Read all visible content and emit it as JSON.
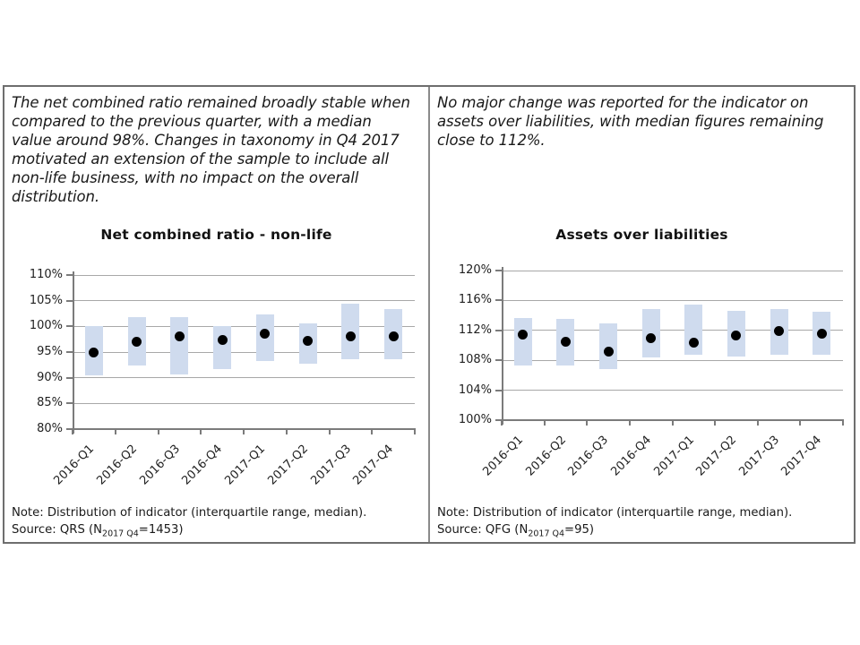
{
  "page": {
    "background": "#ffffff",
    "border_color": "#6e6e6e"
  },
  "panels": [
    {
      "commentary": "The net combined ratio remained broadly stable when\ncompared to the previous quarter, with a median\nvalue around 98%. Changes in taxonomy in Q4 2017\nmotivated an extension of the sample to include all\nnon-life business, with no impact on the overall\ndistribution.",
      "note": "Note: Distribution of indicator (interquartile range, median).",
      "source_prefix": "Source: QRS (N",
      "source_sub": "2017 Q4",
      "source_suffix": "=1453)"
    },
    {
      "commentary": "No major change was reported for the indicator on\nassets over liabilities, with median figures remaining\nclose to 112%.",
      "note": "Note: Distribution of indicator (interquartile range, median).",
      "source_prefix": "Source: QFG (N",
      "source_sub": "2017 Q4",
      "source_suffix": "=95)"
    }
  ],
  "chart_data": [
    {
      "type": "boxplot",
      "title": "Net combined ratio - non-life",
      "categories": [
        "2016-Q1",
        "2016-Q2",
        "2016-Q3",
        "2016-Q4",
        "2017-Q1",
        "2017-Q2",
        "2017-Q3",
        "2017-Q4"
      ],
      "series": [
        {
          "name": "interquartile range",
          "values": [
            [
              90.5,
              100.0
            ],
            [
              92.3,
              101.8
            ],
            [
              90.6,
              101.8
            ],
            [
              91.7,
              100.1
            ],
            [
              93.2,
              102.3
            ],
            [
              92.8,
              100.6
            ],
            [
              93.6,
              104.4
            ],
            [
              93.6,
              103.3
            ]
          ]
        },
        {
          "name": "median",
          "values": [
            95.0,
            97.0,
            98.0,
            97.3,
            98.6,
            97.2,
            98.0,
            98.0
          ]
        }
      ],
      "ylim": [
        80,
        110
      ],
      "ytick_step": 5,
      "yticks": [
        {
          "v": 110,
          "label": "110%"
        },
        {
          "v": 105,
          "label": "105%"
        },
        {
          "v": 100,
          "label": "100%"
        },
        {
          "v": 95,
          "label": "95%"
        },
        {
          "v": 90,
          "label": "90%"
        },
        {
          "v": 85,
          "label": "85%"
        },
        {
          "v": 80,
          "label": "80%"
        }
      ],
      "x_tick_rotation": -45,
      "grid": true,
      "legend": "none",
      "bar_color": "#cfdbee",
      "median_color": "#000000"
    },
    {
      "type": "boxplot",
      "title": "Assets over liabilities",
      "categories": [
        "2016-Q1",
        "2016-Q2",
        "2016-Q3",
        "2016-Q4",
        "2017-Q1",
        "2017-Q2",
        "2017-Q3",
        "2017-Q4"
      ],
      "series": [
        {
          "name": "interquartile range",
          "values": [
            [
              107.3,
              113.7
            ],
            [
              107.3,
              113.5
            ],
            [
              106.8,
              112.9
            ],
            [
              108.4,
              114.8
            ],
            [
              108.7,
              115.5
            ],
            [
              108.5,
              114.6
            ],
            [
              108.8,
              114.9
            ],
            [
              108.8,
              114.5
            ]
          ]
        },
        {
          "name": "median",
          "values": [
            111.4,
            110.5,
            109.2,
            110.9,
            110.3,
            111.3,
            111.9,
            111.6
          ]
        }
      ],
      "ylim": [
        100,
        120
      ],
      "ytick_step": 4,
      "yticks": [
        {
          "v": 120,
          "label": "120%"
        },
        {
          "v": 116,
          "label": "116%"
        },
        {
          "v": 112,
          "label": "112%"
        },
        {
          "v": 108,
          "label": "108%"
        },
        {
          "v": 104,
          "label": "104%"
        },
        {
          "v": 100,
          "label": "100%"
        }
      ],
      "x_tick_rotation": -45,
      "grid": true,
      "legend": "none",
      "bar_color": "#cfdbee",
      "median_color": "#000000"
    }
  ]
}
